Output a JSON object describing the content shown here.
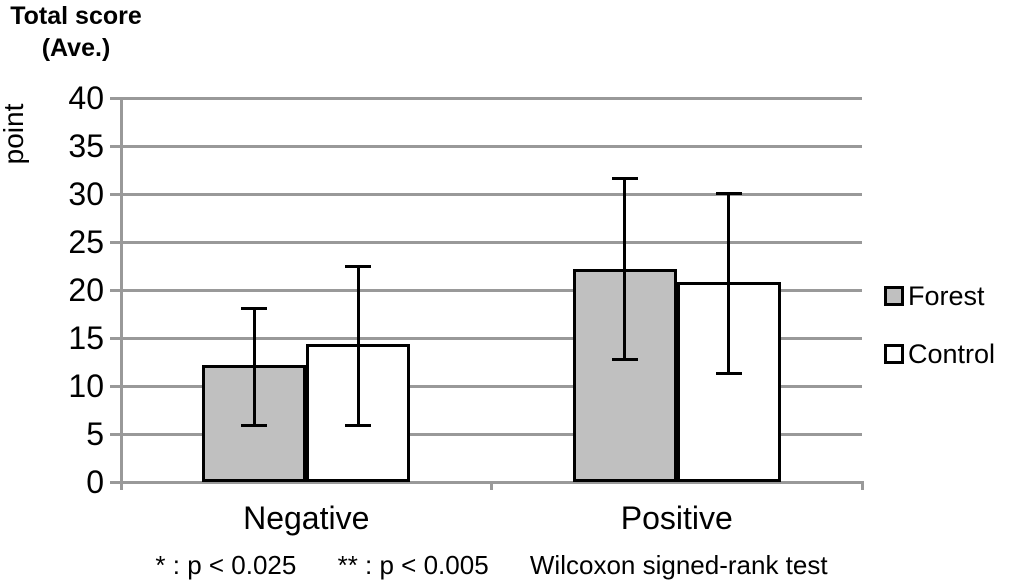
{
  "title": {
    "line1": "Total score",
    "line2": "(Ave.)"
  },
  "y_axis": {
    "label": "point",
    "ticks": [
      40,
      35,
      30,
      25,
      20,
      15,
      10,
      5,
      0
    ],
    "min": 0,
    "max": 40,
    "step": 5
  },
  "footnote": {
    "sig1": "* : p < 0.025",
    "sig2": "** : p < 0.005",
    "test": "Wilcoxon signed-rank test"
  },
  "colors": {
    "grid": "#999999",
    "bar_border": "#000000",
    "error_bar": "#000000",
    "forest_fill": "#c0c0c0",
    "control_fill": "#ffffff",
    "text": "#000000"
  },
  "chart_data": {
    "type": "bar",
    "title": "Total score (Ave.)",
    "ylabel": "point",
    "ylim": [
      0,
      40
    ],
    "grid": true,
    "legend_position": "right",
    "categories": [
      "Negative",
      "Positive"
    ],
    "series": [
      {
        "name": "Forest",
        "fill": "#c0c0c0",
        "values": [
          12.2,
          22.2
        ],
        "error_low": [
          5.9,
          12.8
        ],
        "error_high": [
          18.1,
          31.6
        ]
      },
      {
        "name": "Control",
        "fill": "#ffffff",
        "values": [
          14.4,
          20.8
        ],
        "error_low": [
          5.9,
          11.3
        ],
        "error_high": [
          22.5,
          30.1
        ]
      }
    ]
  }
}
